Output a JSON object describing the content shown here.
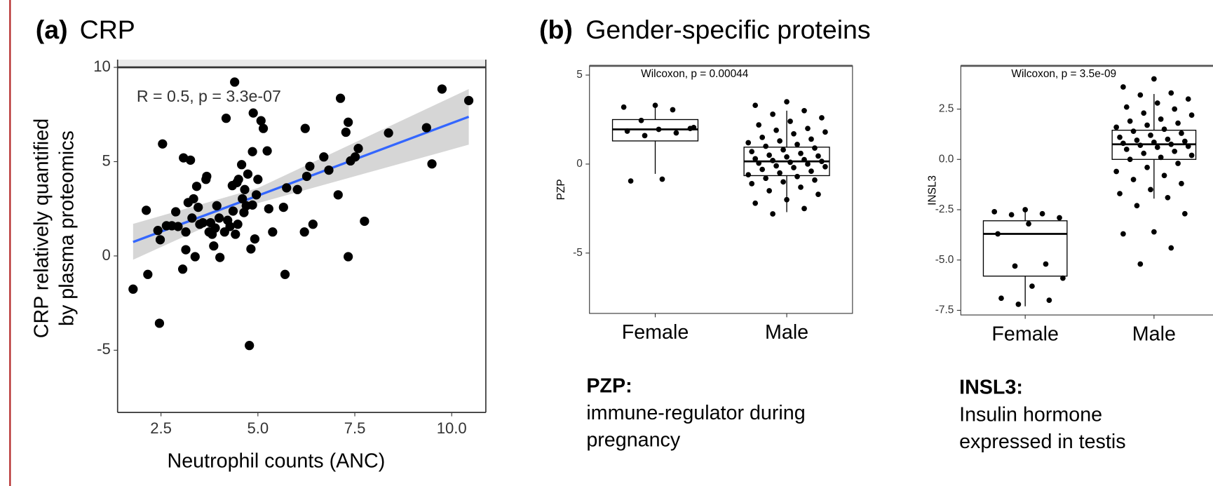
{
  "panels": [
    {
      "label": "(a)",
      "title": "CRP"
    },
    {
      "label": "(b)",
      "title": "Gender-specific proteins"
    }
  ],
  "captions": [
    {
      "title": "PZP:",
      "lines": [
        "immune-regulator during",
        "pregnancy"
      ]
    },
    {
      "title": "INSL3:",
      "lines": [
        "Insulin hormone",
        "expressed in testis"
      ]
    }
  ],
  "chart_data": [
    {
      "type": "scatter",
      "annotation": "R = 0.5, p = 3.3e-07",
      "xlabel": "Neutrophil counts (ANC)",
      "ylabel": [
        "CRP relatively quantified",
        "by plasma proteomics"
      ],
      "color": "#000000",
      "x": [
        1.78,
        2.12,
        2.16,
        2.42,
        2.46,
        2.48,
        2.54,
        2.64,
        2.78,
        2.88,
        2.94,
        3.06,
        3.08,
        3.14,
        3.14,
        3.2,
        3.26,
        3.3,
        3.34,
        3.38,
        3.42,
        3.46,
        3.5,
        3.58,
        3.66,
        3.68,
        3.74,
        3.78,
        3.82,
        3.86,
        3.9,
        3.94,
        4.0,
        4.02,
        4.14,
        4.18,
        4.22,
        4.28,
        4.34,
        4.36,
        4.4,
        4.42,
        4.46,
        4.48,
        4.5,
        4.58,
        4.6,
        4.64,
        4.66,
        4.7,
        4.74,
        4.78,
        4.82,
        4.86,
        4.86,
        4.88,
        4.92,
        4.96,
        5.0,
        5.08,
        5.14,
        5.24,
        5.28,
        5.38,
        5.66,
        5.7,
        5.74,
        6.02,
        6.2,
        6.22,
        6.26,
        6.34,
        6.42,
        6.7,
        6.83,
        7.07,
        7.13,
        7.27,
        7.33,
        7.33,
        7.39,
        7.51,
        7.59,
        7.75,
        8.37,
        9.35,
        9.49,
        9.75,
        10.44
      ],
      "y": [
        -1.76,
        2.42,
        -0.98,
        1.35,
        -3.57,
        0.86,
        5.94,
        1.6,
        1.6,
        2.34,
        1.56,
        -0.7,
        5.2,
        1.27,
        0.33,
        2.83,
        5.08,
        2.01,
        3.03,
        -0.04,
        3.69,
        2.58,
        1.68,
        1.76,
        4.06,
        4.22,
        1.27,
        1.76,
        1.15,
        0.53,
        1.48,
        2.66,
        2.01,
        -0.08,
        1.27,
        7.3,
        1.89,
        1.56,
        3.73,
        2.38,
        9.22,
        1.15,
        3.89,
        1.68,
        4.06,
        4.84,
        3.03,
        2.3,
        3.52,
        2.66,
        4.34,
        -4.75,
        0.37,
        5.53,
        2.7,
        7.58,
        0.9,
        3.24,
        4.06,
        7.17,
        6.76,
        5.57,
        2.5,
        1.27,
        2.58,
        -0.98,
        3.61,
        3.52,
        1.27,
        6.76,
        4.22,
        4.75,
        1.68,
        5.25,
        4.55,
        3.24,
        8.36,
        6.56,
        7.09,
        -0.04,
        5.04,
        5.25,
        5.7,
        1.84,
        6.52,
        6.8,
        4.88,
        8.85,
        8.24
      ],
      "fit": {
        "color": "#3366ff",
        "x": [
          1.78,
          5.0,
          10.44
        ],
        "y": [
          0.74,
          3.2,
          7.38
        ],
        "lower": [
          -0.2,
          2.8,
          5.9
        ],
        "upper": [
          1.7,
          3.6,
          8.85
        ]
      },
      "xlim": [
        1.38,
        10.88
      ],
      "ylim": [
        -8.3,
        10
      ],
      "xticks": [
        2.5,
        {
          "value": 5,
          "label": "5.0"
        },
        7.5,
        {
          "value": 10,
          "label": "10.0"
        }
      ],
      "yticks": [
        -5,
        0,
        5,
        10
      ]
    },
    {
      "type": "box",
      "ylabel": "PZP",
      "annotation": "Wilcoxon, p = 0.00044",
      "categories": [
        "Female",
        "Male"
      ],
      "boxes": [
        {
          "whislo": -0.55,
          "q1": 1.3,
          "med": 1.95,
          "q3": 2.5,
          "whishi": 3.2,
          "points": [
            3.3,
            3.2,
            3.05,
            2.45,
            2.0,
            1.95,
            1.85,
            1.75,
            1.6,
            2.05,
            -0.85,
            -0.95
          ]
        },
        {
          "whislo": -2.7,
          "q1": -0.65,
          "med": 0.15,
          "q3": 0.95,
          "whishi": 3.0,
          "points": [
            3.5,
            3.3,
            3.0,
            2.8,
            2.6,
            2.4,
            2.2,
            2.0,
            1.9,
            1.8,
            1.7,
            1.5,
            1.4,
            1.3,
            1.2,
            1.1,
            1.0,
            0.9,
            0.8,
            0.7,
            0.6,
            0.5,
            0.45,
            0.4,
            0.3,
            0.25,
            0.2,
            0.15,
            0.1,
            0.05,
            0.0,
            -0.1,
            -0.15,
            -0.2,
            -0.3,
            -0.4,
            -0.5,
            -0.6,
            -0.7,
            -0.8,
            -0.9,
            -1.0,
            -1.1,
            -1.3,
            -1.5,
            -1.7,
            -2.0,
            -2.2,
            -2.5,
            -2.8
          ]
        }
      ],
      "ylim": [
        -8.39,
        5.52
      ],
      "yticks": [
        -5,
        0,
        5
      ]
    },
    {
      "type": "box",
      "ylabel": "INSL3",
      "annotation": "Wilcoxon, p = 3.5e-09",
      "categories": [
        "Female",
        "Male"
      ],
      "boxes": [
        {
          "whislo": -7.3,
          "q1": -5.8,
          "med": -3.7,
          "q3": -3.05,
          "whishi": -2.4,
          "points": [
            -2.5,
            -2.6,
            -2.7,
            -2.75,
            -2.9,
            -3.2,
            -3.7,
            -5.2,
            -5.3,
            -5.9,
            -6.3,
            -6.9,
            -7.0,
            -7.2
          ]
        },
        {
          "whislo": -1.95,
          "q1": 0.0,
          "med": 0.75,
          "q3": 1.45,
          "whishi": 3.25,
          "points": [
            4.0,
            3.6,
            3.3,
            3.2,
            3.0,
            2.8,
            2.6,
            2.5,
            2.3,
            2.2,
            2.0,
            1.9,
            1.8,
            1.7,
            1.6,
            1.5,
            1.4,
            1.3,
            1.2,
            1.1,
            1.0,
            0.95,
            0.9,
            0.85,
            0.8,
            0.75,
            0.7,
            0.65,
            0.6,
            0.5,
            0.4,
            0.3,
            0.2,
            0.1,
            0.0,
            -0.2,
            -0.4,
            -0.6,
            -0.8,
            -1.0,
            -1.2,
            -1.5,
            -1.7,
            -1.9,
            -2.3,
            -2.7,
            -3.6,
            -3.7,
            -4.4,
            -5.2
          ]
        }
      ],
      "ylim": [
        -7.73,
        4.65
      ],
      "yticks": [
        {
          "value": -7.5,
          "label": "-7.5"
        },
        {
          "value": -5,
          "label": "-5.0"
        },
        -2.5,
        {
          "value": 0,
          "label": "0.0"
        },
        2.5
      ]
    }
  ]
}
